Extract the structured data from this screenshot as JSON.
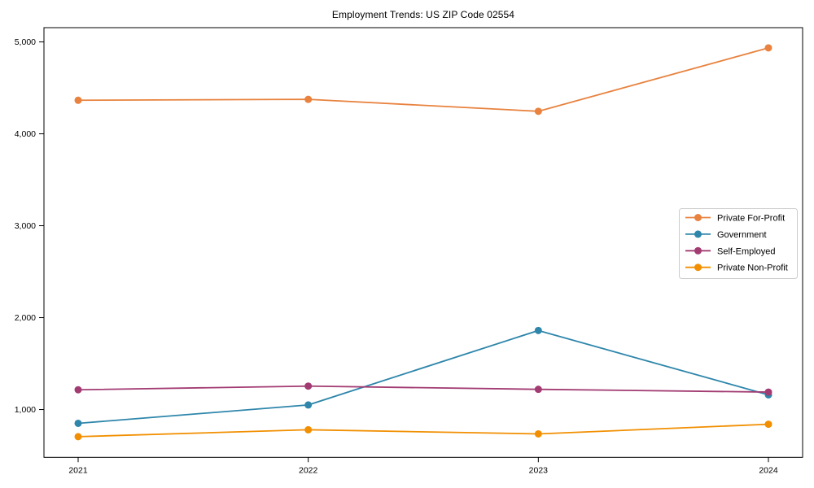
{
  "chart_data": {
    "type": "line",
    "title": "Employment Trends: US ZIP Code 02554",
    "categories": [
      "2021",
      "2022",
      "2023",
      "2024"
    ],
    "x": [
      2021,
      2022,
      2023,
      2024
    ],
    "series": [
      {
        "name": "Private For-Profit",
        "color": "#E8823E",
        "values": [
          4365,
          4375,
          4245,
          4935
        ]
      },
      {
        "name": "Government",
        "color": "#2E86AB",
        "values": [
          850,
          1050,
          1860,
          1160
        ]
      },
      {
        "name": "Self-Employed",
        "color": "#A23B72",
        "values": [
          1215,
          1255,
          1220,
          1190
        ]
      },
      {
        "name": "Private Non-Profit",
        "color": "#F18F01",
        "values": [
          705,
          780,
          735,
          840
        ]
      }
    ],
    "xlabel": "",
    "ylabel": "",
    "ylim": [
      480,
      5155
    ],
    "yticks": [
      1000,
      2000,
      3000,
      4000,
      5000
    ],
    "ytick_labels": [
      "1,000",
      "2,000",
      "3,000",
      "4,000",
      "5,000"
    ],
    "grid": false,
    "legend_position": "center-right",
    "axis_color": "#000000",
    "legend_border_color": "#cccccc",
    "background_color": "#ffffff"
  }
}
